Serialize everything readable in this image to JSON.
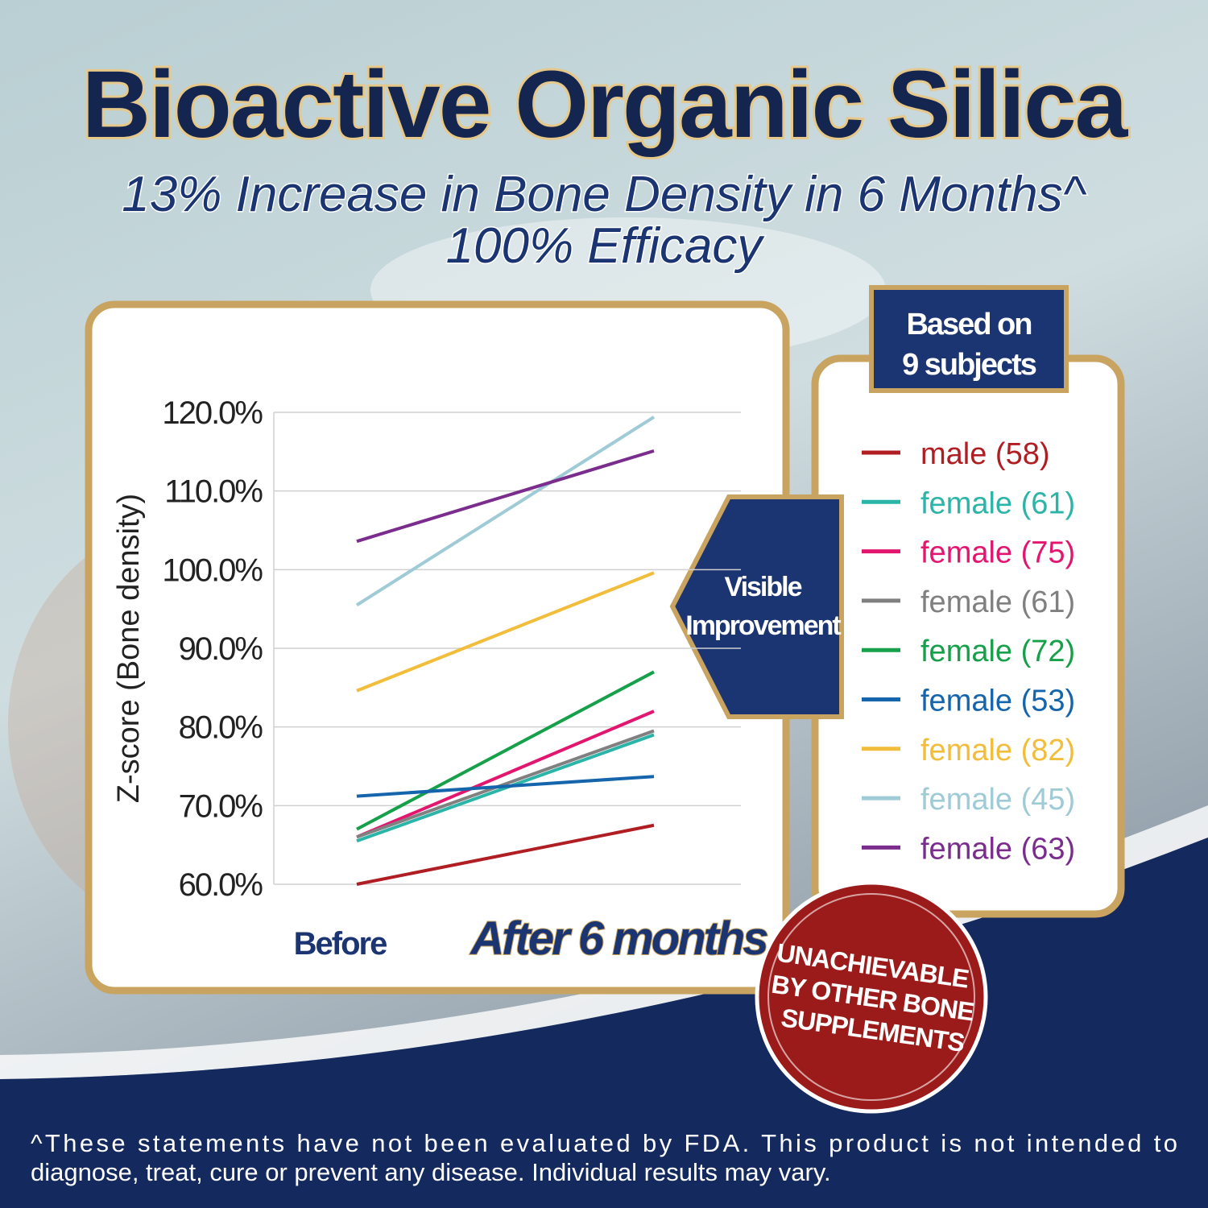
{
  "header": {
    "title": "Bioactive Organic Silica",
    "subtitle": [
      "13% Increase in Bone Density in 6 Months^",
      "100% Efficacy"
    ]
  },
  "chart_data": {
    "type": "line",
    "y_label": "Z-score (Bone density)",
    "categories": [
      "Before",
      "After 6 months"
    ],
    "ylim": [
      60,
      120
    ],
    "yticks": [
      {
        "value": 60,
        "label": "60.0%"
      },
      {
        "value": 70,
        "label": "70.0%"
      },
      {
        "value": 80,
        "label": "80.0%"
      },
      {
        "value": 90,
        "label": "90.0%"
      },
      {
        "value": 100,
        "label": "100.0%"
      },
      {
        "value": 110,
        "label": "110.0%"
      },
      {
        "value": 120,
        "label": "120.0%"
      }
    ],
    "grid": true,
    "series": [
      {
        "name": "male (58)",
        "color": "#b01e23",
        "values": [
          60.0,
          67.5
        ]
      },
      {
        "name": "female (61)",
        "color": "#2bb5a8",
        "values": [
          65.5,
          79.0
        ]
      },
      {
        "name": "female (75)",
        "color": "#e3166f",
        "values": [
          66.0,
          82.0
        ]
      },
      {
        "name": "female (61)",
        "color": "#808080",
        "values": [
          66.0,
          79.5
        ]
      },
      {
        "name": "female (72)",
        "color": "#16a04a",
        "values": [
          67.0,
          87.0
        ]
      },
      {
        "name": "female (53)",
        "color": "#1565ad",
        "values": [
          71.2,
          73.7
        ]
      },
      {
        "name": "female (82)",
        "color": "#f2bd3a",
        "values": [
          84.6,
          99.6
        ]
      },
      {
        "name": "female (45)",
        "color": "#9fcbd6",
        "values": [
          95.5,
          119.4
        ]
      },
      {
        "name": "female (63)",
        "color": "#7b2d8e",
        "values": [
          103.6,
          115.1
        ]
      }
    ]
  },
  "badges": {
    "subjects": [
      "Based on",
      "9 subjects"
    ],
    "improvement": [
      "Visible",
      "Improvement"
    ],
    "seal": [
      "UNACHIEVABLE",
      "BY OTHER BONE",
      "SUPPLEMENTS"
    ]
  },
  "footer": [
    "^These statements have not been evaluated by FDA. This product is not intended to",
    "diagnose, treat, cure or prevent any disease. Individual results may vary."
  ]
}
